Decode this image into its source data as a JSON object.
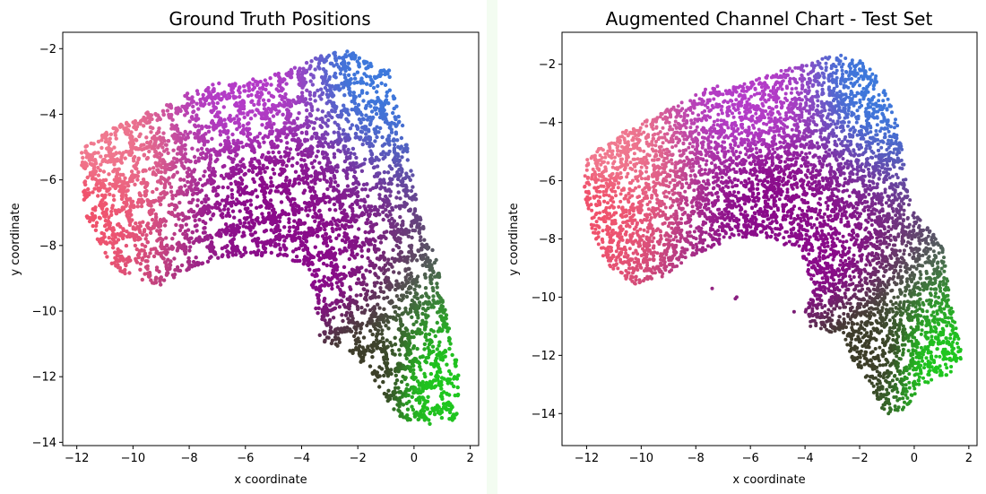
{
  "figure": {
    "background": "#ffffff",
    "gap_strip_color": "#f3fcf1"
  },
  "chart_data": [
    {
      "type": "scatter",
      "title": "Ground Truth Positions",
      "xlabel": "x coordinate",
      "ylabel": "y coordinate",
      "xlim": [
        -12.5,
        2.3
      ],
      "ylim": [
        -14.1,
        -1.5
      ],
      "xticks": [
        -12,
        -10,
        -8,
        -6,
        -4,
        -2,
        0,
        2
      ],
      "xtick_labels": [
        "−12",
        "−10",
        "−8",
        "−6",
        "−4",
        "−2",
        "0",
        "2"
      ],
      "yticks": [
        -14,
        -12,
        -10,
        -8,
        -6,
        -4,
        -2
      ],
      "ytick_labels": [
        "−14",
        "−12",
        "−10",
        "−8",
        "−6",
        "−4",
        "−2"
      ],
      "grid": false,
      "marker_size": 2.2,
      "color_anchors": {
        "west": "#f0506a",
        "northwest": "#f07a90",
        "north": "#b43cc8",
        "northeast": "#3c78dc",
        "center": "#8a0a8a",
        "southeast": "#1ec81e",
        "south": "#3c3c28"
      },
      "region_outline": [
        [
          -11.9,
          -5.1
        ],
        [
          -10.5,
          -4.3
        ],
        [
          -8.5,
          -3.6
        ],
        [
          -7.9,
          -3.2
        ],
        [
          -6.0,
          -2.9
        ],
        [
          -4.6,
          -2.7
        ],
        [
          -3.6,
          -2.3
        ],
        [
          -2.8,
          -2.1
        ],
        [
          -2.3,
          -2.0
        ],
        [
          -1.7,
          -2.4
        ],
        [
          -0.9,
          -2.6
        ],
        [
          -0.7,
          -3.5
        ],
        [
          -0.4,
          -4.3
        ],
        [
          -0.1,
          -5.3
        ],
        [
          0.0,
          -6.2
        ],
        [
          0.2,
          -7.0
        ],
        [
          0.8,
          -8.3
        ],
        [
          1.0,
          -9.5
        ],
        [
          1.3,
          -10.7
        ],
        [
          1.6,
          -11.8
        ],
        [
          1.7,
          -12.5
        ],
        [
          1.5,
          -13.3
        ],
        [
          0.7,
          -13.5
        ],
        [
          0.0,
          -13.4
        ],
        [
          -0.6,
          -13.2
        ],
        [
          -1.1,
          -12.6
        ],
        [
          -1.6,
          -11.8
        ],
        [
          -2.3,
          -11.2
        ],
        [
          -3.3,
          -10.9
        ],
        [
          -3.6,
          -10.1
        ],
        [
          -3.7,
          -9.1
        ],
        [
          -3.8,
          -8.6
        ],
        [
          -5.0,
          -8.3
        ],
        [
          -7.0,
          -8.4
        ],
        [
          -8.2,
          -8.8
        ],
        [
          -9.0,
          -9.2
        ],
        [
          -10.0,
          -9.0
        ],
        [
          -10.8,
          -8.6
        ],
        [
          -11.3,
          -7.8
        ],
        [
          -11.7,
          -7.0
        ]
      ]
    },
    {
      "type": "scatter",
      "title": "Augmented Channel Chart - Test Set",
      "xlabel": "x coordinate",
      "ylabel": "y coordinate",
      "xlim": [
        -12.9,
        2.3
      ],
      "ylim": [
        -15.1,
        -0.9
      ],
      "xticks": [
        -12,
        -10,
        -8,
        -6,
        -4,
        -2,
        0,
        2
      ],
      "xtick_labels": [
        "−12",
        "−10",
        "−8",
        "−6",
        "−4",
        "−2",
        "0",
        "2"
      ],
      "yticks": [
        -14,
        -12,
        -10,
        -8,
        -6,
        -4,
        -2
      ],
      "ytick_labels": [
        "−14",
        "−12",
        "−10",
        "−8",
        "−6",
        "−4",
        "−2"
      ],
      "grid": false,
      "marker_size": 2.0,
      "color_anchors": {
        "west": "#f0506a",
        "northwest": "#f07a90",
        "north": "#b43cc8",
        "northeast": "#3c78dc",
        "center": "#8a0a8a",
        "southeast": "#1ec81e",
        "south": "#3c3c28"
      },
      "region_outline": [
        [
          -12.0,
          -5.2
        ],
        [
          -11.2,
          -4.6
        ],
        [
          -10.0,
          -4.0
        ],
        [
          -8.5,
          -3.3
        ],
        [
          -7.6,
          -2.8
        ],
        [
          -6.0,
          -2.6
        ],
        [
          -4.8,
          -2.2
        ],
        [
          -3.6,
          -1.9
        ],
        [
          -2.8,
          -1.6
        ],
        [
          -1.8,
          -1.9
        ],
        [
          -1.1,
          -2.8
        ],
        [
          -0.6,
          -4.1
        ],
        [
          -0.3,
          -5.8
        ],
        [
          -0.1,
          -7.0
        ],
        [
          0.5,
          -7.6
        ],
        [
          1.1,
          -8.3
        ],
        [
          1.3,
          -10.1
        ],
        [
          1.6,
          -11.2
        ],
        [
          1.8,
          -12.2
        ],
        [
          1.2,
          -12.7
        ],
        [
          0.3,
          -13.0
        ],
        [
          -0.3,
          -13.8
        ],
        [
          -0.6,
          -14.3
        ],
        [
          -1.2,
          -13.8
        ],
        [
          -1.7,
          -12.9
        ],
        [
          -2.3,
          -12.2
        ],
        [
          -2.6,
          -11.2
        ],
        [
          -3.6,
          -11.2
        ],
        [
          -4.0,
          -10.5
        ],
        [
          -3.7,
          -9.8
        ],
        [
          -4.2,
          -8.4
        ],
        [
          -5.6,
          -7.9
        ],
        [
          -6.7,
          -8.0
        ],
        [
          -8.2,
          -8.6
        ],
        [
          -9.2,
          -9.3
        ],
        [
          -10.4,
          -9.6
        ],
        [
          -11.3,
          -8.8
        ],
        [
          -11.9,
          -7.5
        ],
        [
          -12.1,
          -6.3
        ]
      ],
      "outliers": [
        [
          -6.5,
          -10.0
        ],
        [
          -6.55,
          -10.05
        ],
        [
          -4.4,
          -10.5
        ],
        [
          -7.4,
          -9.7
        ],
        [
          -3.8,
          -11.0
        ],
        [
          -3.6,
          -10.9
        ],
        [
          -2.7,
          -10.1
        ]
      ]
    }
  ]
}
